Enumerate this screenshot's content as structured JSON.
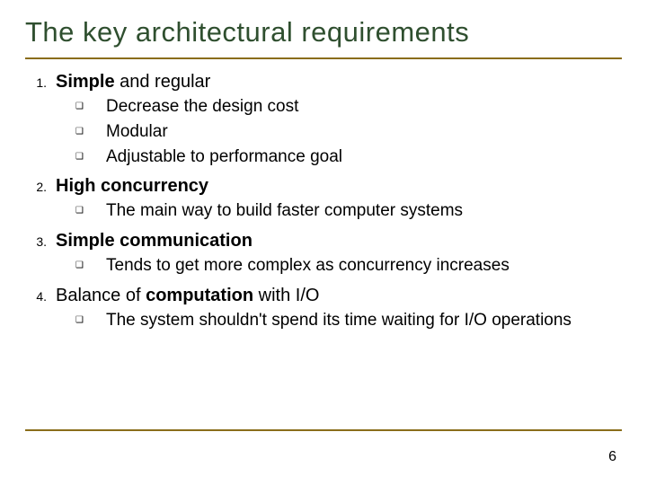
{
  "title": "The key architectural requirements",
  "colors": {
    "title": "#2f4f2f",
    "rule": "#8a6d1a",
    "text": "#000000",
    "background": "#ffffff"
  },
  "fonts": {
    "title_size": 31,
    "heading_size": 20,
    "sub_size": 19,
    "num_size": 14,
    "bullet_size": 10
  },
  "items": [
    {
      "num": "1.",
      "bold": "Simple",
      "rest": " and regular",
      "subs": [
        {
          "text": "Decrease the design cost"
        },
        {
          "text": "Modular"
        },
        {
          "text": "Adjustable to performance goal"
        }
      ]
    },
    {
      "num": "2.",
      "bold": "High concurrency",
      "rest": "",
      "subs": [
        {
          "text": "The main way to build faster computer systems"
        }
      ]
    },
    {
      "num": "3.",
      "bold": "Simple communication",
      "rest": "",
      "subs": [
        {
          "text": "Tends to get more complex as concurrency increases"
        }
      ]
    },
    {
      "num": "4.",
      "prelight": "Balance of ",
      "bold": "computation",
      "rest": " with I/O",
      "subs": [
        {
          "text": "The system shouldn't spend its time waiting for I/O operations"
        }
      ]
    }
  ],
  "bullet_glyph": "❑",
  "page_number": "6"
}
